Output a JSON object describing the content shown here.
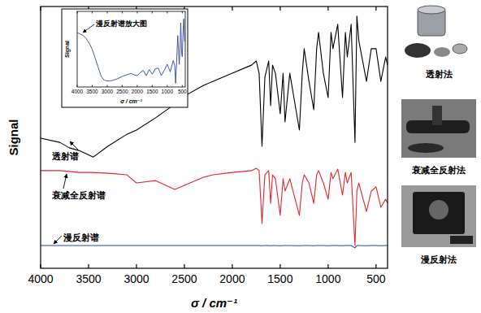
{
  "chart_data": [
    {
      "type": "line",
      "x_label": "σ / cm⁻¹",
      "y_label": "Signal",
      "x": [
        4000,
        3800,
        3700,
        3600,
        3450,
        3300,
        3100,
        3000,
        2800,
        2600,
        2500,
        2300,
        2200,
        2000,
        1800,
        1750,
        1720,
        1690,
        1660,
        1620,
        1600,
        1580,
        1550,
        1500,
        1470,
        1450,
        1400,
        1300,
        1270,
        1250,
        1200,
        1150,
        1120,
        1100,
        1050,
        1000,
        970,
        950,
        900,
        850,
        820,
        800,
        760,
        720,
        700,
        680,
        600,
        550,
        500,
        450,
        400,
        380
      ],
      "series": [
        {
          "name": "透射谱",
          "color": "#000000",
          "values": [
            49.7,
            48.1,
            46.0,
            45.0,
            42.5,
            46.6,
            51.2,
            52.8,
            57.5,
            62.7,
            65.8,
            69.9,
            71.4,
            74.5,
            77.6,
            79.2,
            74.5,
            46.6,
            73.0,
            79.2,
            62.1,
            77.6,
            74.5,
            59.0,
            74.5,
            55.9,
            74.5,
            52.8,
            74.5,
            83.9,
            71.4,
            60.6,
            83.9,
            90.1,
            74.5,
            65.2,
            90.1,
            83.9,
            93.2,
            65.2,
            90.1,
            80.7,
            93.2,
            48.1,
            96.3,
            87.0,
            71.4,
            83.9,
            83.9,
            71.4,
            80.7,
            77.6
          ]
        },
        {
          "name": "衰减全反射谱",
          "color": "#e8262b",
          "values": [
            37.3,
            37.3,
            37.0,
            36.6,
            36.6,
            36.3,
            35.7,
            32.6,
            33.5,
            30.1,
            31.7,
            34.8,
            35.7,
            36.6,
            37.3,
            38.2,
            37.3,
            17.1,
            35.7,
            37.3,
            24.8,
            35.7,
            34.2,
            20.2,
            34.2,
            29.5,
            34.2,
            20.2,
            32.6,
            35.7,
            32.6,
            24.8,
            35.7,
            37.3,
            32.6,
            26.4,
            36.6,
            34.2,
            37.9,
            28.0,
            36.6,
            32.6,
            36.6,
            8.7,
            29.5,
            32.6,
            21.7,
            29.5,
            31.1,
            23.3,
            26.4,
            24.8
          ]
        },
        {
          "name": "漫反射谱",
          "color": "#2b4c9b",
          "values": [
            8.7,
            8.7,
            8.7,
            8.7,
            8.7,
            8.7,
            8.7,
            8.7,
            8.7,
            8.7,
            8.7,
            8.7,
            8.7,
            8.7,
            8.7,
            8.7,
            8.7,
            8.6,
            8.7,
            8.7,
            8.6,
            8.7,
            8.7,
            8.6,
            8.7,
            8.7,
            8.7,
            8.6,
            8.7,
            8.7,
            8.7,
            8.6,
            8.7,
            8.7,
            8.7,
            8.6,
            8.7,
            8.7,
            8.7,
            8.6,
            8.7,
            8.7,
            8.7,
            7.8,
            8.7,
            8.7,
            8.6,
            8.7,
            8.7,
            8.6,
            8.7,
            8.7
          ]
        }
      ],
      "xlim": [
        4000,
        380
      ],
      "ylim": [
        0,
        100
      ],
      "xticks": [
        4000,
        3500,
        3000,
        2500,
        2000,
        1500,
        1000,
        500
      ],
      "tick_labels": "x"
    },
    {
      "type": "line",
      "title": "漫反射谱放大图",
      "x_label": "σ / cm⁻¹",
      "y_label": "Signal",
      "x": [
        4000,
        3900,
        3800,
        3700,
        3600,
        3500,
        3400,
        3300,
        3200,
        3100,
        3000,
        2900,
        2800,
        2650,
        2500,
        2350,
        2200,
        2100,
        2000,
        1900,
        1800,
        1700,
        1600,
        1500,
        1400,
        1300,
        1200,
        1100,
        1000,
        900,
        800,
        750,
        720,
        680,
        650,
        600,
        570,
        550,
        520,
        500,
        470,
        450,
        420
      ],
      "series": [
        {
          "color": "#2f46b0",
          "values": [
            72,
            70,
            68,
            64,
            58,
            50,
            38,
            26,
            14,
            9,
            8,
            8,
            9,
            11,
            14,
            16,
            18,
            16,
            15,
            19,
            22,
            15,
            23,
            17,
            24,
            25,
            15,
            22,
            30,
            20,
            35,
            28,
            5,
            40,
            68,
            30,
            55,
            85,
            45,
            40,
            75,
            90,
            60
          ]
        }
      ],
      "xlim": [
        4000,
        400
      ],
      "ylim": [
        0,
        100
      ],
      "xticks": [
        4000,
        3500,
        3000,
        2500,
        2000,
        1500,
        1000,
        500
      ],
      "tick_labels": "x"
    }
  ],
  "side_panels": [
    "透射法",
    "衰减全反射法",
    "漫反射法"
  ]
}
